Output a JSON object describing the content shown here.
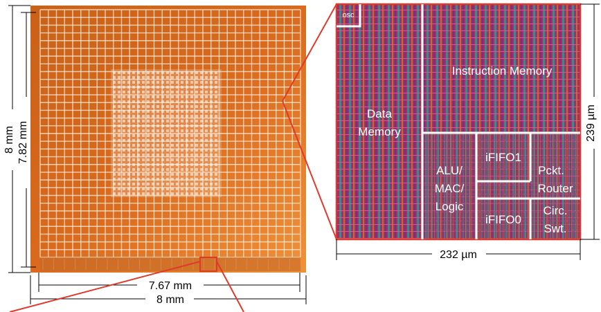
{
  "dimensions": {
    "die_height_outer": "8 mm",
    "die_height_inner": "7.82 mm",
    "die_width_inner": "7.67 mm",
    "die_width_outer": "8 mm",
    "tile_height": "239 µm",
    "tile_width": "232 µm"
  },
  "tile_blocks": {
    "osc": "osc",
    "instruction_memory": "Instruction Memory",
    "data_memory_line1": "Data",
    "data_memory_line2": "Memory",
    "alu_line1": "ALU/",
    "alu_line2": "MAC/",
    "alu_line3": "Logic",
    "ififo1": "iFIFO1",
    "ififo0": "iFIFO0",
    "router_line1": "Pckt.",
    "router_line2": "Router",
    "circuit_line1": "Circ.",
    "circuit_line2": "Swt."
  },
  "colors": {
    "chip_orange": "#d96a1e",
    "chip_light": "#f0913a",
    "highlight_red": "#e0392b",
    "tile_magenta": "#a0306a",
    "tile_teal": "#2f8f8a"
  }
}
